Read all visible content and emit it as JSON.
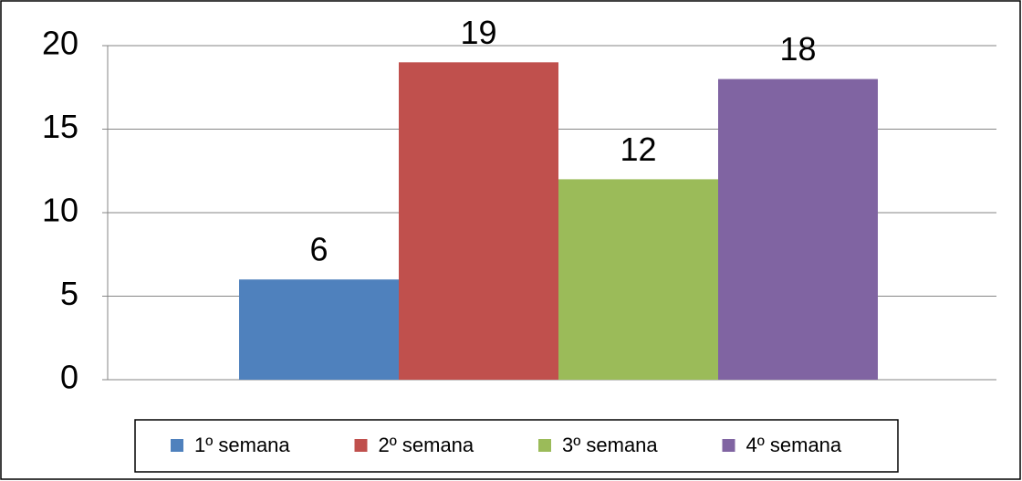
{
  "chart_data": {
    "type": "bar",
    "categories": [
      null
    ],
    "series": [
      {
        "name": "1º semana",
        "color": "#4f81bd",
        "values": [
          6
        ]
      },
      {
        "name": "2º semana",
        "color": "#c0504d",
        "values": [
          19
        ]
      },
      {
        "name": "3º semana",
        "color": "#9bbb59",
        "values": [
          12
        ]
      },
      {
        "name": "4º semana",
        "color": "#8064a2",
        "values": [
          18
        ]
      }
    ],
    "ylim": [
      0,
      20
    ],
    "yticks": [
      0,
      5,
      10,
      15,
      20
    ],
    "grid": true,
    "legend": "bottom"
  }
}
